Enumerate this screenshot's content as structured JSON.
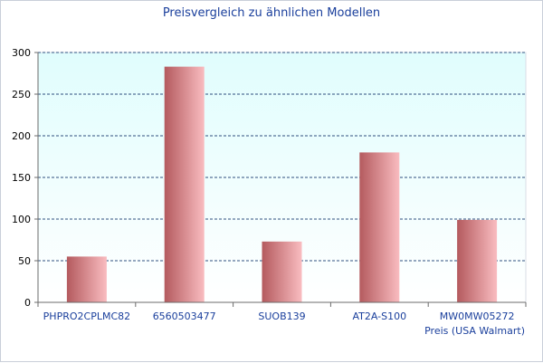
{
  "chart_data": {
    "type": "bar",
    "title": "Preisvergleich zu ähnlichen Modellen",
    "categories": [
      "PHPRO2CPLMC82",
      "6560503477",
      "SUOB139",
      "AT2A-S100",
      "MW0MW05272"
    ],
    "series": [
      {
        "name": "",
        "values": [
          55,
          283,
          73,
          180,
          99
        ]
      }
    ],
    "xlabel": "Preis (USA Walmart)",
    "ylabel": "",
    "ylim": [
      0,
      300
    ],
    "yticks": [
      0,
      50,
      100,
      150,
      200,
      250,
      300
    ],
    "grid": true,
    "legend": "none",
    "colors": {
      "plot_bg_top": "#e0fdfd",
      "plot_bg_bottom": "#ffffff",
      "bar_dark": "#b45a5e",
      "bar_light": "#f9bcc0",
      "grid": "#2f4f7f",
      "title": "#1a3f9c",
      "category_label": "#1a3f9c"
    }
  }
}
